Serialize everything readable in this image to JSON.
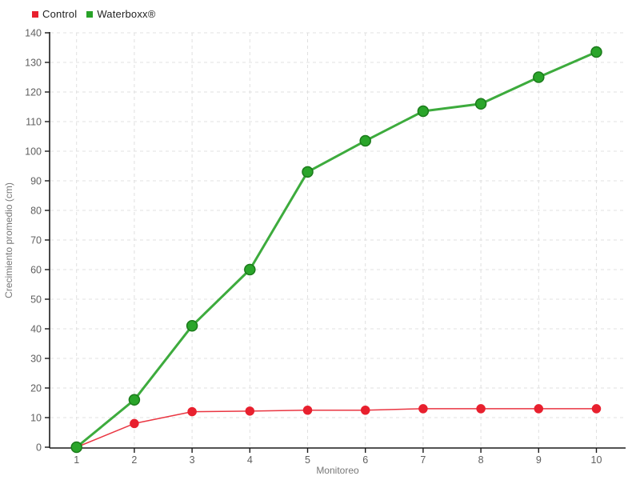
{
  "legend": {
    "items": [
      {
        "label": "Control",
        "color": "#e8202e"
      },
      {
        "label": "Waterboxx®",
        "color": "#28a228"
      }
    ]
  },
  "chart_data": {
    "type": "line",
    "x": [
      1,
      2,
      3,
      4,
      5,
      6,
      7,
      8,
      9,
      10
    ],
    "series": [
      {
        "name": "Control",
        "color": "#e8202e",
        "marker_color": "#e8202e",
        "marker_stroke": "#e8202e",
        "line_width": 1.5,
        "marker_radius": 5,
        "values": [
          0,
          8,
          12,
          12.2,
          12.5,
          12.5,
          13,
          13,
          13,
          13
        ]
      },
      {
        "name": "Waterboxx®",
        "color": "#28a228",
        "marker_color": "#2aa52a",
        "marker_stroke": "#1b7a1b",
        "line_width": 3,
        "marker_radius": 6.5,
        "values": [
          0,
          16,
          41,
          60,
          93,
          103.5,
          113.5,
          116,
          125,
          133.5
        ]
      }
    ],
    "xlabel": "Monitoreo",
    "ylabel": "Crecimiento promedio (cm)",
    "ylim": [
      0,
      140
    ],
    "ytick_step": 10,
    "xticks": [
      1,
      2,
      3,
      4,
      5,
      6,
      7,
      8,
      9,
      10
    ],
    "grid": true,
    "grid_color": "#e0e0e0",
    "axis_color": "#1a1a1a",
    "legend_position": "top-left"
  }
}
